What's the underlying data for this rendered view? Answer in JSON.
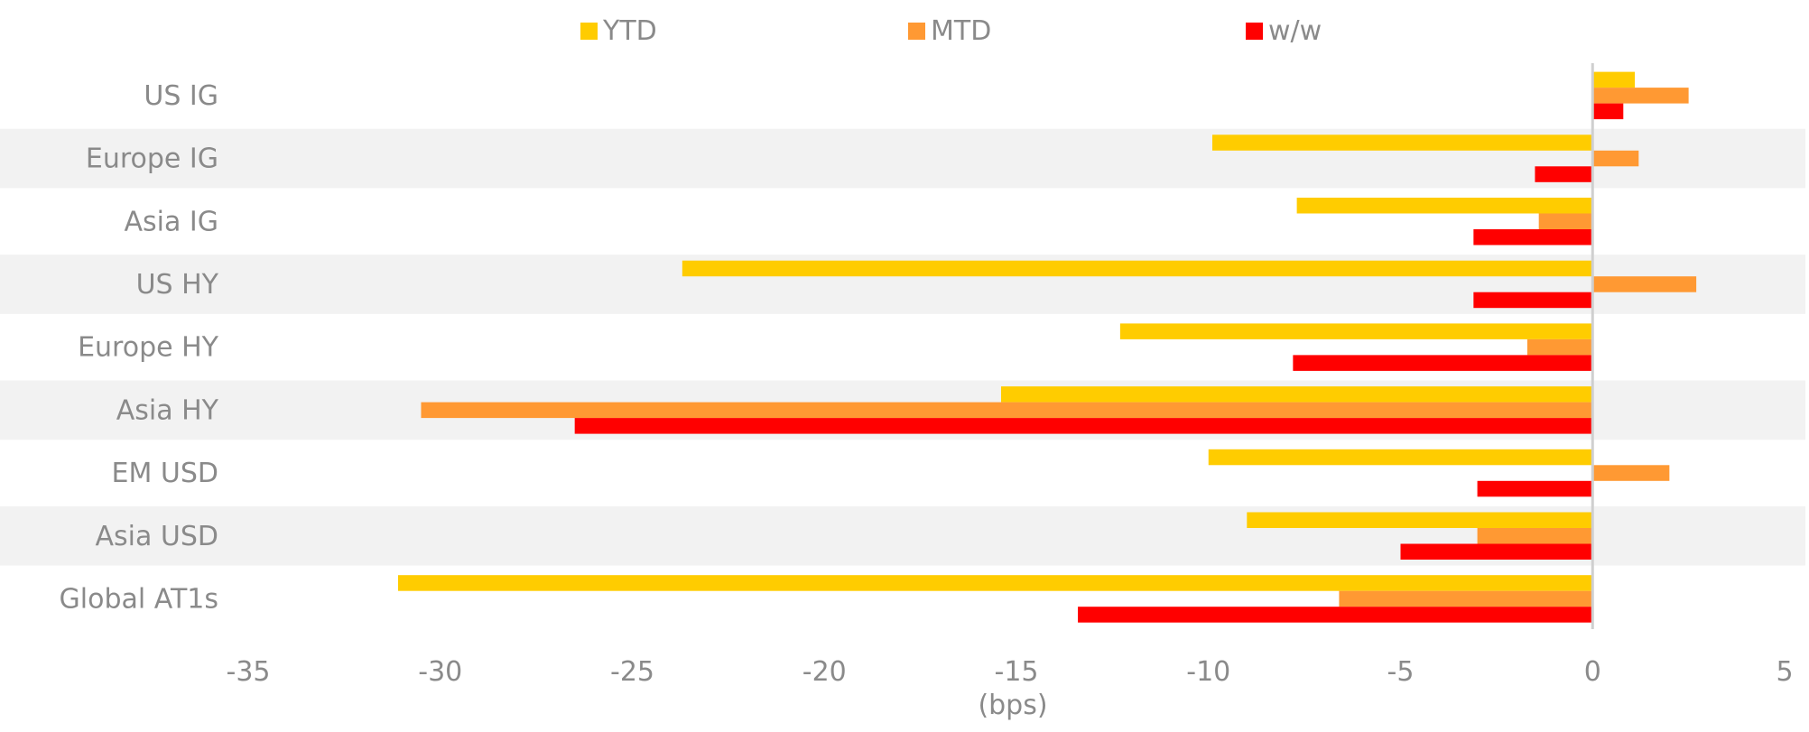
{
  "chart_data": {
    "type": "bar",
    "orientation": "horizontal",
    "categories": [
      "US IG",
      "Europe IG",
      "Asia IG",
      "US HY",
      "Europe HY",
      "Asia HY",
      "EM USD",
      "Asia USD",
      "Global AT1s"
    ],
    "series": [
      {
        "name": "YTD",
        "color": "#FFCC00",
        "values": [
          1.1,
          -9.9,
          -7.7,
          -23.7,
          -12.3,
          -15.4,
          -10.0,
          -9.0,
          -31.1
        ]
      },
      {
        "name": "MTD",
        "color": "#FF9933",
        "values": [
          2.5,
          1.2,
          -1.4,
          2.7,
          -1.7,
          -30.5,
          2.0,
          -3.0,
          -6.6
        ]
      },
      {
        "name": "w/w",
        "color": "#FF0000",
        "values": [
          0.8,
          -1.5,
          -3.1,
          -3.1,
          -7.8,
          -26.5,
          -3.0,
          -5.0,
          -13.4
        ]
      }
    ],
    "xlabel": "(bps)",
    "xlim": [
      -35,
      5
    ],
    "xticks": [
      -35,
      -30,
      -25,
      -20,
      -15,
      -10,
      -5,
      0,
      5
    ],
    "band_color": "#F2F2F2",
    "legend_position": "top-center",
    "grid": false
  }
}
